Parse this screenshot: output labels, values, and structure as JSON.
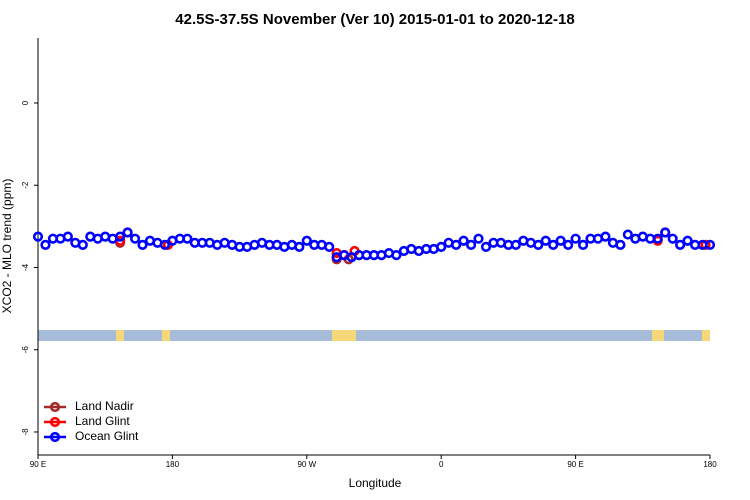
{
  "chart_data": {
    "type": "scatter",
    "title": "42.5S-37.5S November (Ver 10)   2015-01-01 to 2020-12-18",
    "x_label": "Longitude",
    "y_label": "XCO2 - MLO trend (ppm)",
    "xlim": [
      90,
      540
    ],
    "ylim": [
      -8.56,
      1.58
    ],
    "xticks": [
      {
        "value": 90,
        "label": "90 E"
      },
      {
        "value": 180,
        "label": "180"
      },
      {
        "value": 270,
        "label": "90 W"
      },
      {
        "value": 360,
        "label": "0"
      },
      {
        "value": 450,
        "label": "90 E"
      },
      {
        "value": 540,
        "label": "180"
      }
    ],
    "yticks": [
      0,
      -2,
      -4,
      -6,
      -8
    ],
    "legend": "bottom-left",
    "series": [
      {
        "name": "Land Nadir",
        "color": "#a52a2a",
        "x": [
          145,
          290,
          298
        ],
        "values": [
          -3.4,
          -3.8,
          -3.8
        ]
      },
      {
        "name": "Land Glint",
        "color": "#ff0000",
        "x": [
          145,
          150,
          177,
          290,
          295,
          302,
          505,
          510,
          537
        ],
        "values": [
          -3.35,
          -3.15,
          -3.45,
          -3.65,
          -3.7,
          -3.6,
          -3.35,
          -3.15,
          -3.45
        ]
      },
      {
        "name": "Ocean Glint",
        "color": "#0000ff",
        "x": [
          90,
          95,
          100,
          105,
          110,
          115,
          120,
          125,
          130,
          135,
          140,
          145,
          150,
          155,
          160,
          165,
          170,
          175,
          180,
          185,
          190,
          195,
          200,
          205,
          210,
          215,
          220,
          225,
          230,
          235,
          240,
          245,
          250,
          255,
          260,
          265,
          270,
          275,
          280,
          285,
          290,
          295,
          300,
          305,
          310,
          315,
          320,
          325,
          330,
          335,
          340,
          345,
          350,
          355,
          360,
          365,
          370,
          375,
          380,
          385,
          390,
          395,
          400,
          405,
          410,
          415,
          420,
          425,
          430,
          435,
          440,
          445,
          450,
          455,
          460,
          465,
          470,
          475,
          480,
          485,
          490,
          495,
          500,
          505,
          510,
          515,
          520,
          525,
          530,
          535,
          540
        ],
        "values": [
          -3.25,
          -3.45,
          -3.3,
          -3.3,
          -3.25,
          -3.4,
          -3.45,
          -3.25,
          -3.3,
          -3.25,
          -3.3,
          -3.25,
          -3.15,
          -3.3,
          -3.45,
          -3.35,
          -3.4,
          -3.45,
          -3.35,
          -3.3,
          -3.3,
          -3.4,
          -3.4,
          -3.4,
          -3.45,
          -3.4,
          -3.45,
          -3.5,
          -3.5,
          -3.45,
          -3.4,
          -3.45,
          -3.45,
          -3.5,
          -3.45,
          -3.5,
          -3.35,
          -3.45,
          -3.45,
          -3.5,
          -3.75,
          -3.7,
          -3.75,
          -3.7,
          -3.7,
          -3.7,
          -3.7,
          -3.65,
          -3.7,
          -3.6,
          -3.55,
          -3.6,
          -3.55,
          -3.55,
          -3.5,
          -3.4,
          -3.45,
          -3.35,
          -3.45,
          -3.3,
          -3.5,
          -3.4,
          -3.4,
          -3.45,
          -3.45,
          -3.35,
          -3.4,
          -3.45,
          -3.35,
          -3.45,
          -3.35,
          -3.45,
          -3.3,
          -3.45,
          -3.3,
          -3.3,
          -3.25,
          -3.4,
          -3.45,
          -3.2,
          -3.3,
          -3.25,
          -3.3,
          -3.3,
          -3.15,
          -3.3,
          -3.45,
          -3.35,
          -3.45,
          -3.45,
          -3.45
        ]
      }
    ]
  }
}
